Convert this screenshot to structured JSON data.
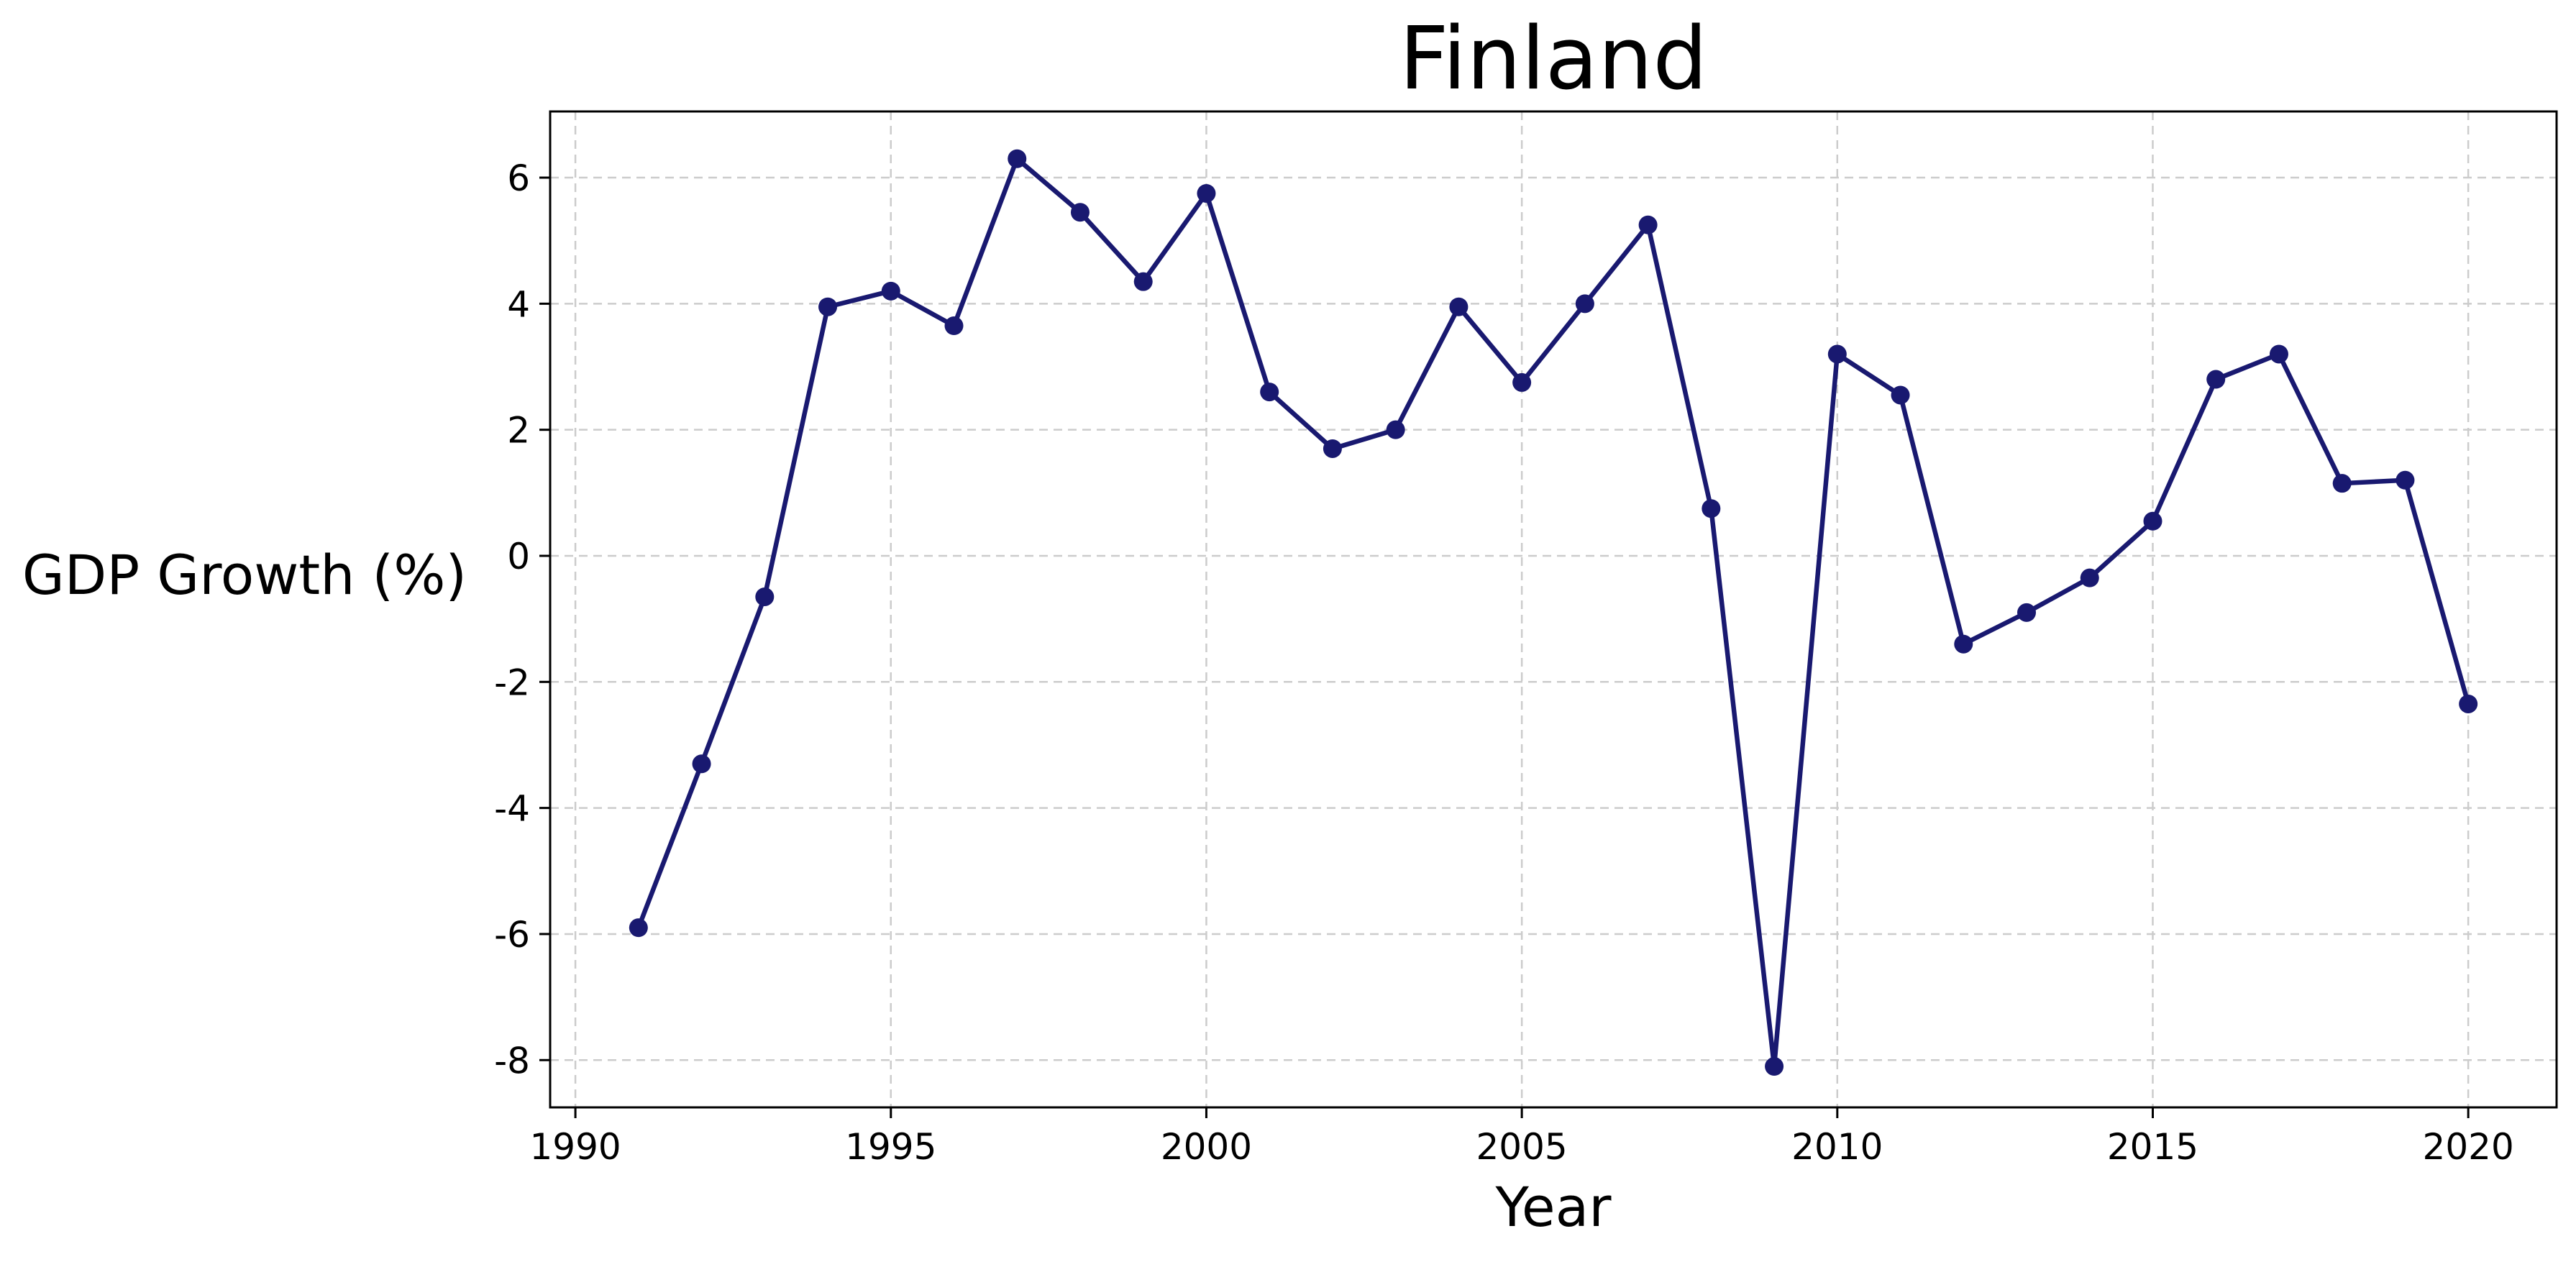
{
  "chart_data": {
    "type": "line",
    "title": "Finland",
    "xlabel": "Year",
    "ylabel": "GDP Growth (%)",
    "xlim": [
      1989.6,
      2021.4
    ],
    "ylim": [
      -8.75,
      7.05
    ],
    "xticks": [
      1990,
      1995,
      2000,
      2005,
      2010,
      2015,
      2020
    ],
    "yticks": [
      -8,
      -6,
      -4,
      -2,
      0,
      2,
      4,
      6
    ],
    "grid": true,
    "line_color": "#191970",
    "series": [
      {
        "x": [
          1991,
          1992,
          1993,
          1994,
          1995,
          1996,
          1997,
          1998,
          1999,
          2000,
          2001,
          2002,
          2003,
          2004,
          2005,
          2006,
          2007,
          2008,
          2009,
          2010,
          2011,
          2012,
          2013,
          2014,
          2015,
          2016,
          2017,
          2018,
          2019,
          2020
        ],
        "values": [
          -5.9,
          -3.3,
          -0.65,
          3.95,
          4.2,
          3.65,
          6.3,
          5.45,
          4.35,
          5.75,
          2.6,
          1.7,
          2.0,
          3.95,
          2.75,
          4.0,
          5.25,
          0.75,
          -8.1,
          3.2,
          2.55,
          -1.4,
          -0.9,
          -0.35,
          0.55,
          2.8,
          3.2,
          1.15,
          1.2,
          -2.35
        ]
      }
    ]
  }
}
